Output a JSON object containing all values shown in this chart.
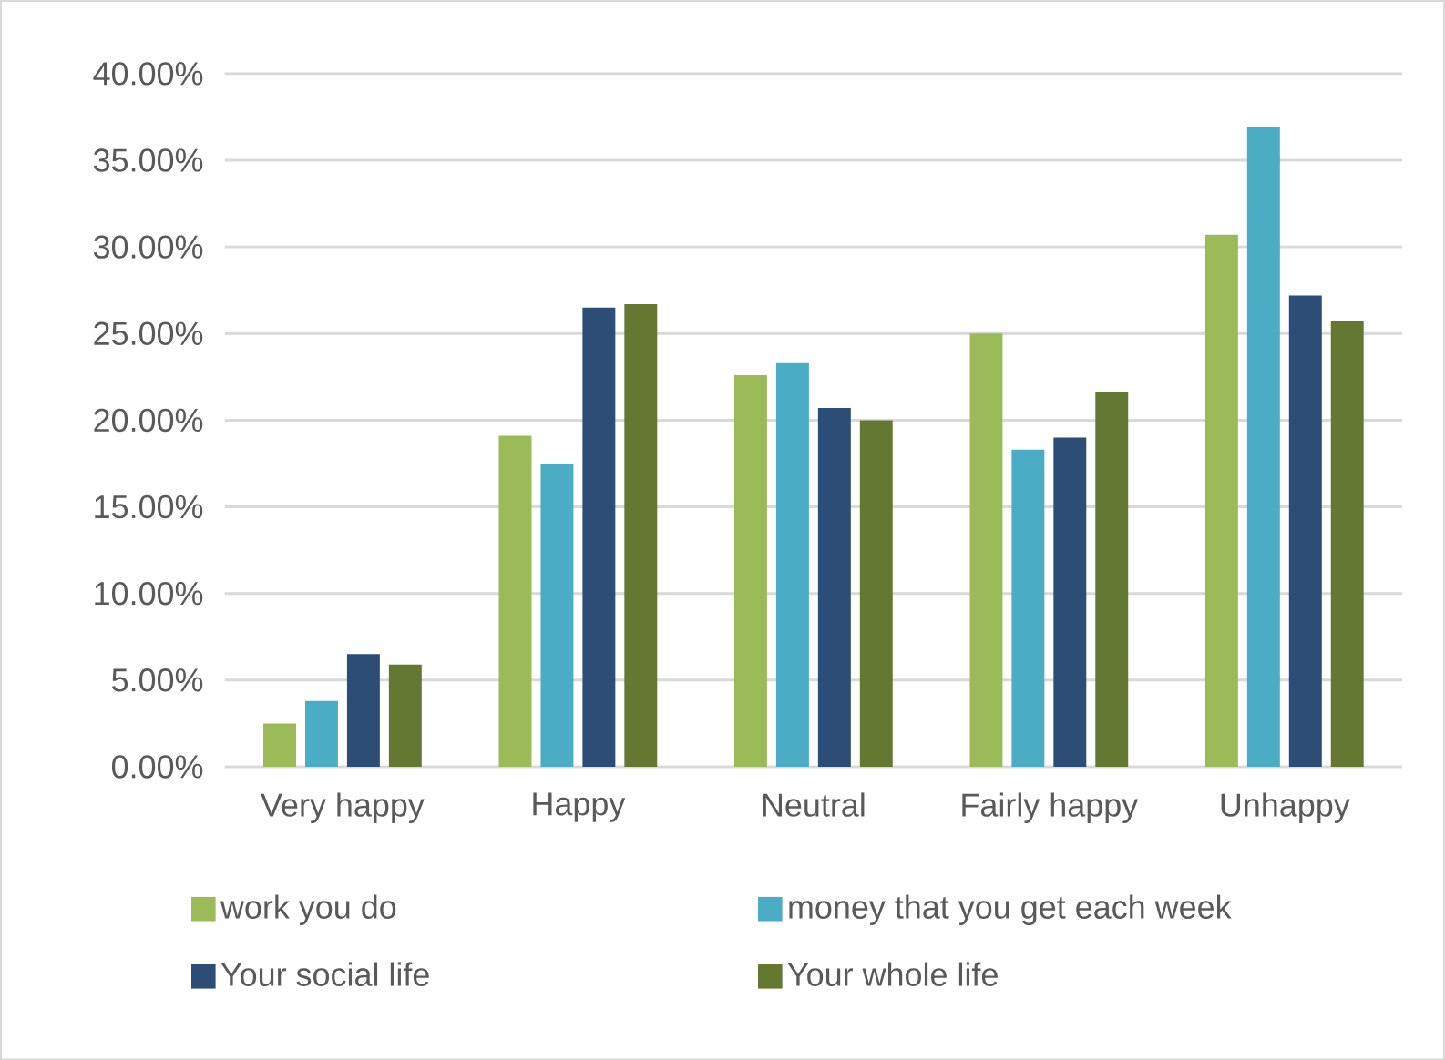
{
  "chart_data": {
    "type": "bar",
    "categories": [
      "Very happy",
      "Happy",
      "Neutral",
      "Fairly happy",
      "Unhappy"
    ],
    "series": [
      {
        "name": "work  you do",
        "color": "#9bbb59",
        "values": [
          2.5,
          19.1,
          22.6,
          25.0,
          30.7
        ]
      },
      {
        "name": "money that you get each week",
        "color": "#4bacc6",
        "values": [
          3.8,
          17.5,
          23.3,
          18.3,
          36.9
        ]
      },
      {
        "name": "Your social life",
        "color": "#2c4d75",
        "values": [
          6.5,
          26.5,
          20.7,
          19.0,
          27.2
        ]
      },
      {
        "name": "Your whole life",
        "color": "#647832",
        "values": [
          5.9,
          26.7,
          20.0,
          21.6,
          25.7
        ]
      }
    ],
    "ylim": [
      0,
      40
    ],
    "yticks": [
      {
        "value": 0,
        "label": "0.00%"
      },
      {
        "value": 5,
        "label": "5.00%"
      },
      {
        "value": 10,
        "label": "10.00%"
      },
      {
        "value": 15,
        "label": "15.00%"
      },
      {
        "value": 20,
        "label": "20.00%"
      },
      {
        "value": 25,
        "label": "25.00%"
      },
      {
        "value": 30,
        "label": "30.00%"
      },
      {
        "value": 35,
        "label": "35.00%"
      },
      {
        "value": 40,
        "label": "40.00%"
      }
    ],
    "grid": "y",
    "legend": "bottom"
  }
}
